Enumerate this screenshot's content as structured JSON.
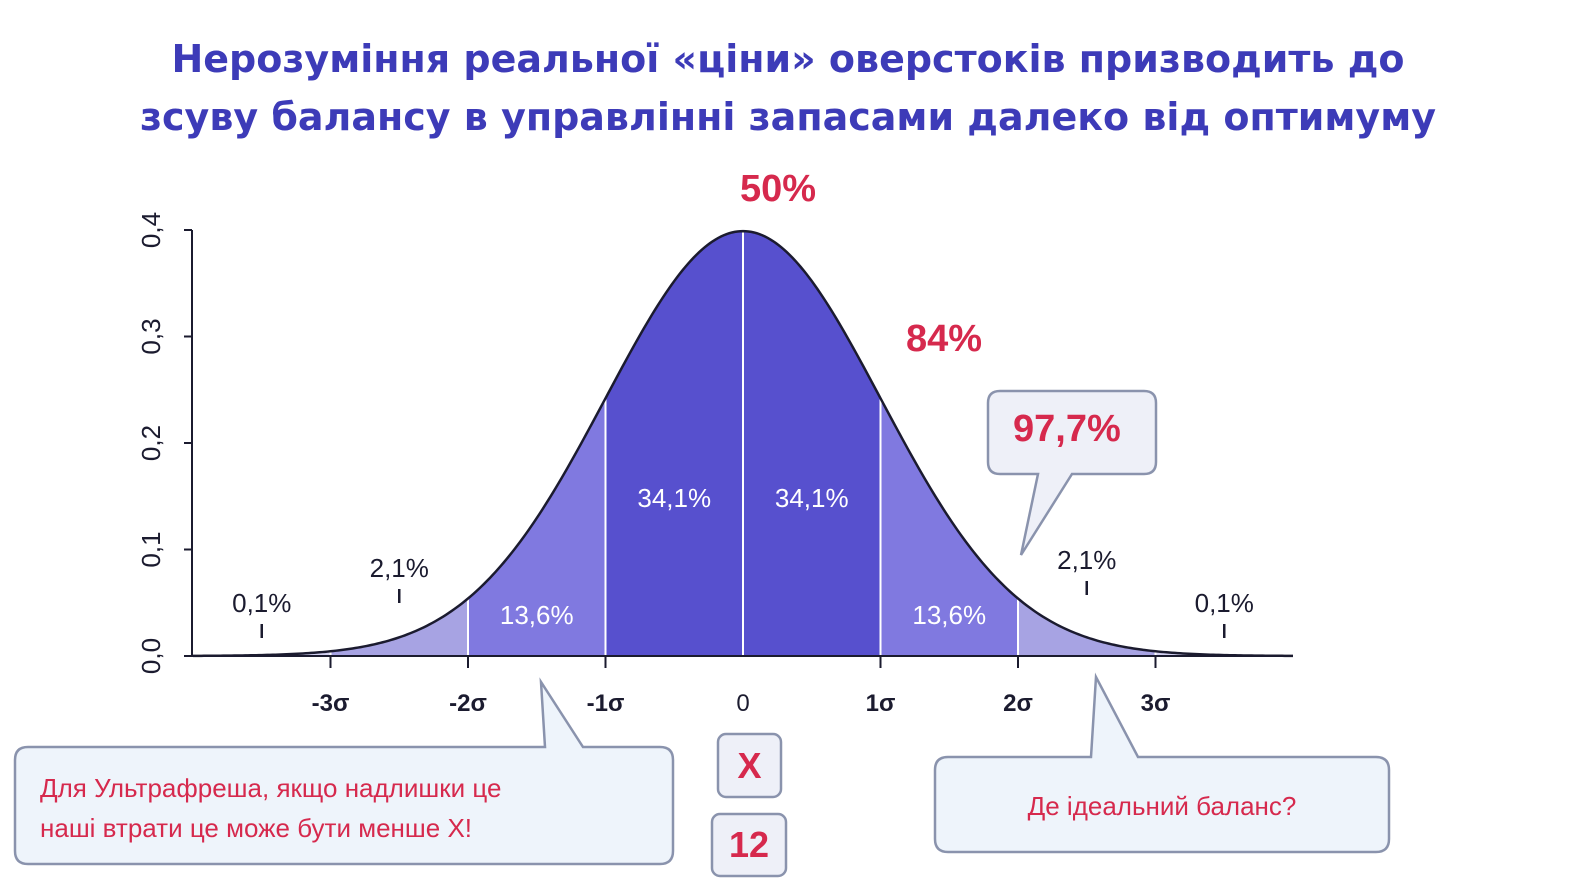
{
  "title": {
    "line1": "Нерозуміння реальної «ціни» оверстоків призводить до",
    "line2": "зсуву балансу в управлінні запасами далеко від оптимуму"
  },
  "colors": {
    "title": "#3d3bb8",
    "accent_red": "#d6294d",
    "band_inner": "#5750ce",
    "band_mid": "#8079e0",
    "band_outer": "#a7a3e3",
    "band_tail": "#d3d1f2",
    "callout_bg": "#eef4fb",
    "callout_border": "#8a93ad"
  },
  "chart_data": {
    "type": "area",
    "distribution": "normal",
    "x_tick_labels": [
      "-3σ",
      "-2σ",
      "-1σ",
      "0",
      "1σ",
      "2σ",
      "3σ"
    ],
    "x_ticks": [
      -3,
      -2,
      -1,
      0,
      1,
      2,
      3
    ],
    "xlim": [
      -4,
      4
    ],
    "y_tick_labels": [
      "0,0",
      "0,1",
      "0,2",
      "0,3",
      "0,4"
    ],
    "y_ticks": [
      0,
      0.1,
      0.2,
      0.3,
      0.4
    ],
    "ylim": [
      0,
      0.4
    ],
    "bands": [
      {
        "from": -4,
        "to": -3,
        "label": "0,1%",
        "label_x": -3.5,
        "shade": "tail"
      },
      {
        "from": -3,
        "to": -2,
        "label": "2,1%",
        "label_x": -2.5,
        "shade": "outer"
      },
      {
        "from": -2,
        "to": -1,
        "label": "13,6%",
        "label_x": -1.5,
        "shade": "mid"
      },
      {
        "from": -1,
        "to": 0,
        "label": "34,1%",
        "label_x": -0.5,
        "shade": "inner"
      },
      {
        "from": 0,
        "to": 1,
        "label": "34,1%",
        "label_x": 0.5,
        "shade": "inner"
      },
      {
        "from": 1,
        "to": 2,
        "label": "13,6%",
        "label_x": 1.5,
        "shade": "mid"
      },
      {
        "from": 2,
        "to": 3,
        "label": "2,1%",
        "label_x": 2.5,
        "shade": "outer"
      },
      {
        "from": 3,
        "to": 4,
        "label": "0,1%",
        "label_x": 3.5,
        "shade": "tail"
      }
    ],
    "cumulative_annotations": [
      {
        "label": "50%",
        "at_sigma": 0
      },
      {
        "label": "84%",
        "at_sigma": 1
      },
      {
        "label": "97,7%",
        "at_sigma": 2
      }
    ]
  },
  "markers": {
    "x_box": "X",
    "num_box": "12"
  },
  "callouts": {
    "left_line1": "Для Ультрафреша, якщо надлишки це",
    "left_line2": "наші втрати це може бути менше X!",
    "right": "Де ідеальний баланс?"
  }
}
